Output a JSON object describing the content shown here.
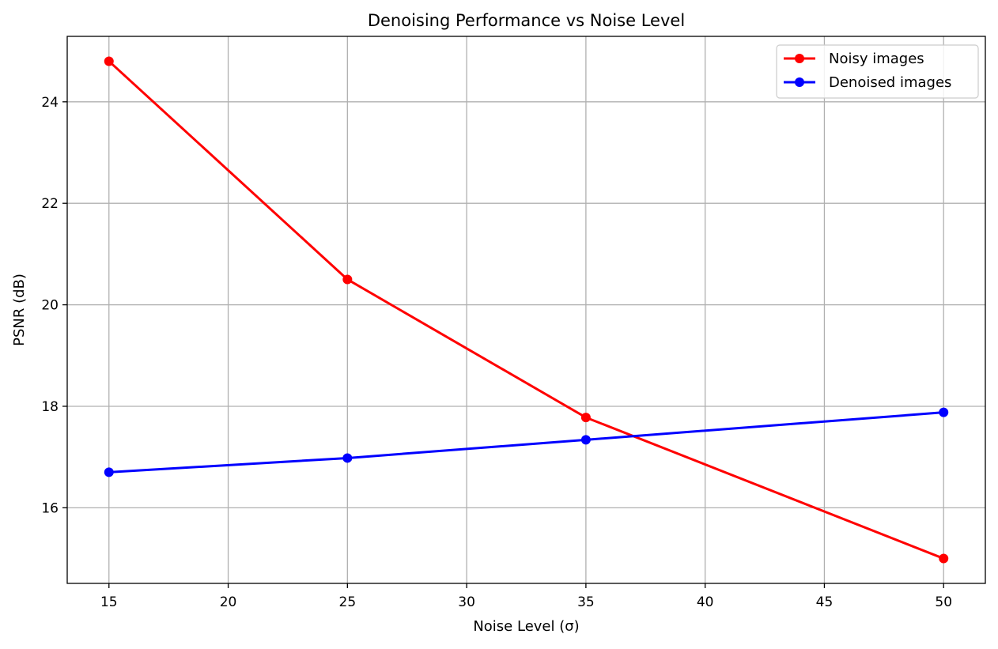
{
  "chart_data": {
    "type": "line",
    "title": "Denoising Performance vs Noise Level",
    "xlabel": "Noise Level (σ)",
    "ylabel": "PSNR (dB)",
    "x": [
      15,
      25,
      35,
      50
    ],
    "xlim": [
      13.25,
      51.75
    ],
    "ylim": [
      14.51,
      25.29
    ],
    "xticks": [
      15,
      20,
      25,
      30,
      35,
      40,
      45,
      50
    ],
    "yticks": [
      16,
      18,
      20,
      22,
      24
    ],
    "grid": true,
    "legend_position": "top-right",
    "series": [
      {
        "name": "Noisy images",
        "color": "#ff0000",
        "marker": "circle",
        "values": [
          24.8,
          20.5,
          17.78,
          15.0
        ]
      },
      {
        "name": "Denoised images",
        "color": "#0000ff",
        "marker": "circle",
        "values": [
          16.7,
          16.98,
          17.34,
          17.88
        ]
      }
    ]
  }
}
